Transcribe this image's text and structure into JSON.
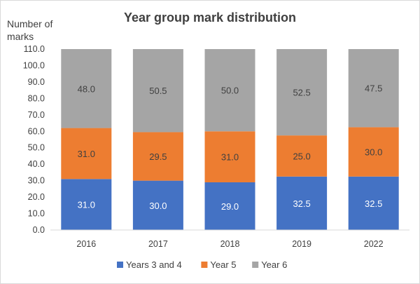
{
  "chart_data": {
    "type": "bar",
    "stacked": true,
    "title": "Year group mark distribution",
    "ylabel_lines": [
      "Number of",
      "marks"
    ],
    "xlabel": "",
    "categories": [
      "2016",
      "2017",
      "2018",
      "2019",
      "2022"
    ],
    "ylim": [
      0,
      110
    ],
    "ytick_step": 10,
    "ytick_decimals": 1,
    "grid": false,
    "legend_position": "bottom",
    "series": [
      {
        "name": "Years 3 and 4",
        "color": "#4472C4",
        "label_color": "#ffffff",
        "values": [
          31.0,
          30.0,
          29.0,
          32.5,
          32.5
        ]
      },
      {
        "name": "Year 5",
        "color": "#ED7D31",
        "label_color": "#404040",
        "values": [
          31.0,
          29.5,
          31.0,
          25.0,
          30.0
        ]
      },
      {
        "name": "Year 6",
        "color": "#A5A5A5",
        "label_color": "#404040",
        "values": [
          48.0,
          50.5,
          50.0,
          52.5,
          47.5
        ]
      }
    ]
  }
}
